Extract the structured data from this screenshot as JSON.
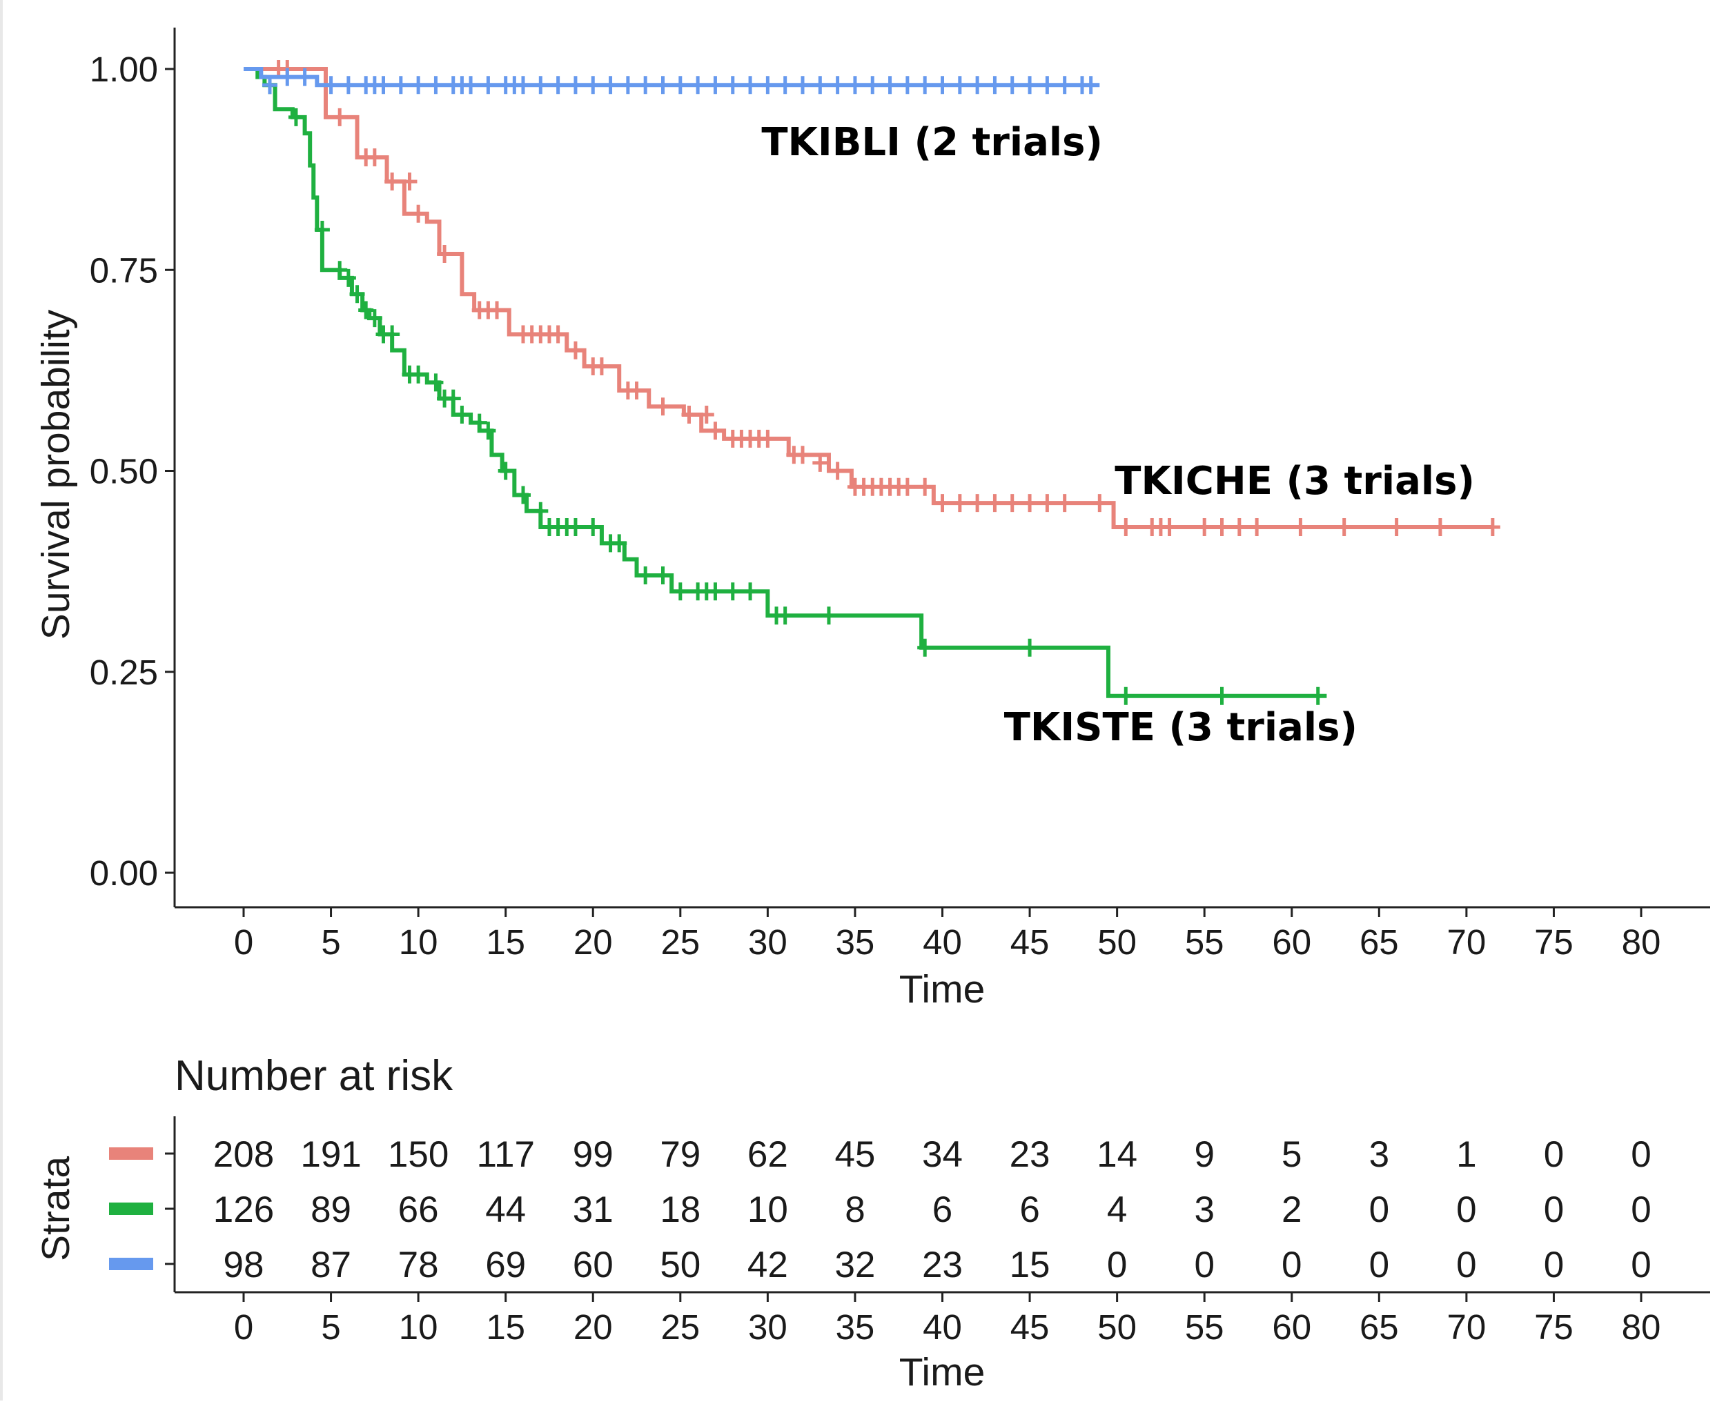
{
  "chart_data": {
    "type": "line",
    "subtype": "kaplan-meier",
    "ylabel": "Survival probability",
    "xlabel": "Time",
    "xlim": [
      0,
      80
    ],
    "ylim": [
      0,
      1
    ],
    "x_ticks": [
      "0",
      "5",
      "10",
      "15",
      "20",
      "25",
      "30",
      "35",
      "40",
      "45",
      "50",
      "55",
      "60",
      "65",
      "70",
      "75",
      "80"
    ],
    "y_ticks": [
      "0.00",
      "0.25",
      "0.50",
      "0.75",
      "1.00"
    ],
    "grid": false,
    "series": [
      {
        "name": "TKICHE",
        "annotation": "TKICHE (3 trials)",
        "color": "#e8837a",
        "steps": [
          [
            0,
            1.0
          ],
          [
            4.7,
            0.94
          ],
          [
            6.5,
            0.89
          ],
          [
            8.2,
            0.86
          ],
          [
            9.2,
            0.82
          ],
          [
            10.5,
            0.81
          ],
          [
            11.2,
            0.77
          ],
          [
            12.5,
            0.72
          ],
          [
            13.2,
            0.7
          ],
          [
            15.2,
            0.67
          ],
          [
            18.5,
            0.65
          ],
          [
            19.5,
            0.63
          ],
          [
            21.5,
            0.6
          ],
          [
            23.2,
            0.58
          ],
          [
            25.2,
            0.57
          ],
          [
            26.2,
            0.55
          ],
          [
            27.5,
            0.54
          ],
          [
            31.2,
            0.52
          ],
          [
            33.5,
            0.5
          ],
          [
            34.8,
            0.48
          ],
          [
            39.5,
            0.46
          ],
          [
            49.8,
            0.43
          ],
          [
            71.5,
            0.43
          ]
        ],
        "censored": [
          [
            2,
            1.0
          ],
          [
            2.5,
            1.0
          ],
          [
            5.5,
            0.94
          ],
          [
            7,
            0.89
          ],
          [
            7.5,
            0.89
          ],
          [
            8.5,
            0.86
          ],
          [
            9.5,
            0.86
          ],
          [
            10,
            0.82
          ],
          [
            11.5,
            0.77
          ],
          [
            13.5,
            0.7
          ],
          [
            14,
            0.7
          ],
          [
            14.5,
            0.7
          ],
          [
            16,
            0.67
          ],
          [
            16.5,
            0.67
          ],
          [
            17,
            0.67
          ],
          [
            17.5,
            0.67
          ],
          [
            18,
            0.67
          ],
          [
            19,
            0.65
          ],
          [
            20,
            0.63
          ],
          [
            20.5,
            0.63
          ],
          [
            22,
            0.6
          ],
          [
            22.5,
            0.6
          ],
          [
            24,
            0.58
          ],
          [
            25.5,
            0.57
          ],
          [
            26.5,
            0.57
          ],
          [
            27,
            0.55
          ],
          [
            28,
            0.54
          ],
          [
            28.5,
            0.54
          ],
          [
            29,
            0.54
          ],
          [
            29.5,
            0.54
          ],
          [
            30,
            0.54
          ],
          [
            31.5,
            0.52
          ],
          [
            32,
            0.52
          ],
          [
            33,
            0.51
          ],
          [
            34,
            0.5
          ],
          [
            35,
            0.48
          ],
          [
            35.5,
            0.48
          ],
          [
            36,
            0.48
          ],
          [
            36.5,
            0.48
          ],
          [
            37,
            0.48
          ],
          [
            37.5,
            0.48
          ],
          [
            38,
            0.48
          ],
          [
            39,
            0.48
          ],
          [
            40,
            0.46
          ],
          [
            41,
            0.46
          ],
          [
            42,
            0.46
          ],
          [
            43,
            0.46
          ],
          [
            44,
            0.46
          ],
          [
            45,
            0.46
          ],
          [
            46,
            0.46
          ],
          [
            47,
            0.46
          ],
          [
            49,
            0.46
          ],
          [
            50.5,
            0.43
          ],
          [
            52,
            0.43
          ],
          [
            52.5,
            0.43
          ],
          [
            53,
            0.43
          ],
          [
            55,
            0.43
          ],
          [
            56,
            0.43
          ],
          [
            57,
            0.43
          ],
          [
            58,
            0.43
          ],
          [
            60.5,
            0.43
          ],
          [
            63,
            0.43
          ],
          [
            66,
            0.43
          ],
          [
            68.5,
            0.43
          ],
          [
            71.5,
            0.43
          ]
        ],
        "at_risk": [
          "208",
          "191",
          "150",
          "117",
          "99",
          "79",
          "62",
          "45",
          "34",
          "23",
          "14",
          "9",
          "5",
          "3",
          "1",
          "0",
          "0"
        ]
      },
      {
        "name": "TKISTE",
        "annotation": "TKISTE (3 trials)",
        "color": "#1fb040",
        "steps": [
          [
            0,
            1.0
          ],
          [
            0.8,
            0.99
          ],
          [
            1.2,
            0.98
          ],
          [
            1.8,
            0.95
          ],
          [
            2.8,
            0.94
          ],
          [
            3.5,
            0.92
          ],
          [
            3.8,
            0.88
          ],
          [
            4.0,
            0.84
          ],
          [
            4.2,
            0.8
          ],
          [
            4.5,
            0.75
          ],
          [
            5.5,
            0.74
          ],
          [
            6.2,
            0.72
          ],
          [
            6.8,
            0.7
          ],
          [
            7.2,
            0.69
          ],
          [
            7.8,
            0.67
          ],
          [
            8.5,
            0.65
          ],
          [
            9.2,
            0.62
          ],
          [
            10.5,
            0.61
          ],
          [
            11.2,
            0.59
          ],
          [
            12.0,
            0.57
          ],
          [
            13.0,
            0.56
          ],
          [
            13.5,
            0.55
          ],
          [
            14.2,
            0.52
          ],
          [
            14.8,
            0.5
          ],
          [
            15.5,
            0.47
          ],
          [
            16.2,
            0.45
          ],
          [
            17.0,
            0.43
          ],
          [
            20.5,
            0.41
          ],
          [
            21.8,
            0.39
          ],
          [
            22.5,
            0.37
          ],
          [
            24.5,
            0.35
          ],
          [
            30.0,
            0.32
          ],
          [
            38.8,
            0.28
          ],
          [
            49.5,
            0.22
          ],
          [
            62,
            0.22
          ]
        ],
        "censored": [
          [
            1.5,
            0.98
          ],
          [
            3,
            0.94
          ],
          [
            4.5,
            0.8
          ],
          [
            5.5,
            0.75
          ],
          [
            6,
            0.74
          ],
          [
            6.5,
            0.72
          ],
          [
            7,
            0.7
          ],
          [
            7.5,
            0.69
          ],
          [
            8,
            0.67
          ],
          [
            8.5,
            0.67
          ],
          [
            9.5,
            0.62
          ],
          [
            10,
            0.62
          ],
          [
            11,
            0.61
          ],
          [
            11.5,
            0.59
          ],
          [
            12,
            0.59
          ],
          [
            12.5,
            0.57
          ],
          [
            13.5,
            0.56
          ],
          [
            14,
            0.55
          ],
          [
            15,
            0.5
          ],
          [
            16,
            0.47
          ],
          [
            17,
            0.45
          ],
          [
            17.5,
            0.43
          ],
          [
            18,
            0.43
          ],
          [
            18.5,
            0.43
          ],
          [
            19,
            0.43
          ],
          [
            20,
            0.43
          ],
          [
            21,
            0.41
          ],
          [
            21.5,
            0.41
          ],
          [
            23,
            0.37
          ],
          [
            24,
            0.37
          ],
          [
            25,
            0.35
          ],
          [
            26,
            0.35
          ],
          [
            26.5,
            0.35
          ],
          [
            27,
            0.35
          ],
          [
            28,
            0.35
          ],
          [
            29,
            0.35
          ],
          [
            30.5,
            0.32
          ],
          [
            31,
            0.32
          ],
          [
            33.5,
            0.32
          ],
          [
            39,
            0.28
          ],
          [
            45,
            0.28
          ],
          [
            50.5,
            0.22
          ],
          [
            56,
            0.22
          ],
          [
            61.5,
            0.22
          ]
        ],
        "at_risk": [
          "126",
          "89",
          "66",
          "44",
          "31",
          "18",
          "10",
          "8",
          "6",
          "6",
          "4",
          "3",
          "2",
          "0",
          "0",
          "0",
          "0"
        ]
      },
      {
        "name": "TKIBLI",
        "annotation": "TKIBLI (2 trials)",
        "color": "#6699ee",
        "steps": [
          [
            0,
            1.0
          ],
          [
            1.0,
            0.99
          ],
          [
            4.2,
            0.98
          ],
          [
            49,
            0.98
          ]
        ],
        "censored": [
          [
            1.5,
            0.98
          ],
          [
            2.5,
            0.99
          ],
          [
            3.5,
            0.99
          ],
          [
            5,
            0.98
          ],
          [
            6,
            0.98
          ],
          [
            7,
            0.98
          ],
          [
            7.5,
            0.98
          ],
          [
            8,
            0.98
          ],
          [
            9,
            0.98
          ],
          [
            10,
            0.98
          ],
          [
            11,
            0.98
          ],
          [
            12,
            0.98
          ],
          [
            12.5,
            0.98
          ],
          [
            13,
            0.98
          ],
          [
            14,
            0.98
          ],
          [
            15,
            0.98
          ],
          [
            15.5,
            0.98
          ],
          [
            16,
            0.98
          ],
          [
            17,
            0.98
          ],
          [
            18,
            0.98
          ],
          [
            19,
            0.98
          ],
          [
            20,
            0.98
          ],
          [
            21,
            0.98
          ],
          [
            22,
            0.98
          ],
          [
            23,
            0.98
          ],
          [
            24,
            0.98
          ],
          [
            25,
            0.98
          ],
          [
            26,
            0.98
          ],
          [
            27,
            0.98
          ],
          [
            28,
            0.98
          ],
          [
            29,
            0.98
          ],
          [
            30,
            0.98
          ],
          [
            31,
            0.98
          ],
          [
            32,
            0.98
          ],
          [
            33,
            0.98
          ],
          [
            34,
            0.98
          ],
          [
            35,
            0.98
          ],
          [
            36,
            0.98
          ],
          [
            37,
            0.98
          ],
          [
            38,
            0.98
          ],
          [
            39,
            0.98
          ],
          [
            40,
            0.98
          ],
          [
            41,
            0.98
          ],
          [
            42,
            0.98
          ],
          [
            43,
            0.98
          ],
          [
            44,
            0.98
          ],
          [
            45,
            0.98
          ],
          [
            46,
            0.98
          ],
          [
            47,
            0.98
          ],
          [
            48,
            0.98
          ],
          [
            48.5,
            0.98
          ]
        ],
        "at_risk": [
          "98",
          "87",
          "78",
          "69",
          "60",
          "50",
          "42",
          "32",
          "23",
          "15",
          "0",
          "0",
          "0",
          "0",
          "0",
          "0",
          "0"
        ]
      }
    ]
  },
  "risk_table": {
    "title": "Number at risk",
    "ylabel": "Strata",
    "xlabel": "Time",
    "times": [
      "0",
      "5",
      "10",
      "15",
      "20",
      "25",
      "30",
      "35",
      "40",
      "45",
      "50",
      "55",
      "60",
      "65",
      "70",
      "75",
      "80"
    ]
  }
}
